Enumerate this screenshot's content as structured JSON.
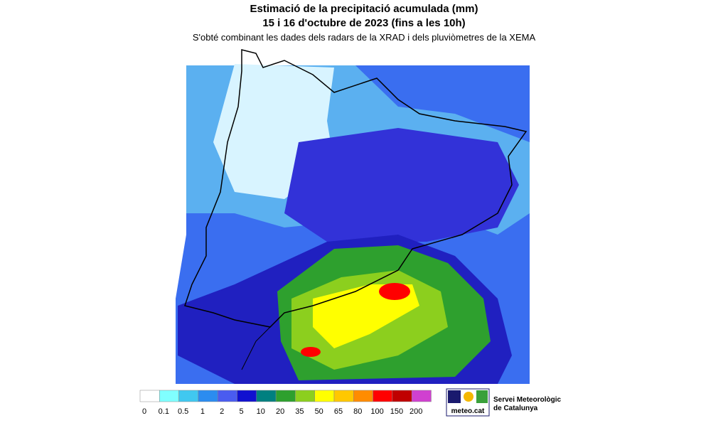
{
  "header": {
    "title": "Estimació de la precipitació acumulada (mm)",
    "date": "15 i 16 d'octubre de 2023 (fins a les 10h)",
    "subtitle": "S'obté combinant les dades dels radars de la XRAD i dels pluviòmetres de la XEMA"
  },
  "legend": {
    "labels": [
      "0",
      "0.1",
      "0.5",
      "1",
      "2",
      "5",
      "10",
      "20",
      "35",
      "50",
      "65",
      "80",
      "100",
      "150",
      "200"
    ],
    "colors": [
      "#ffffff",
      "#80ffff",
      "#40c8f0",
      "#2b8cf0",
      "#4a5cf0",
      "#1010d0",
      "#008080",
      "#2ea02e",
      "#8ccf1e",
      "#ffff00",
      "#ffc800",
      "#ff8c00",
      "#ff0000",
      "#c00000",
      "#d040d0"
    ]
  },
  "logo": {
    "brand": "meteo.cat",
    "line1": "Servei Meteorològic",
    "line2": "de Catalunya"
  }
}
